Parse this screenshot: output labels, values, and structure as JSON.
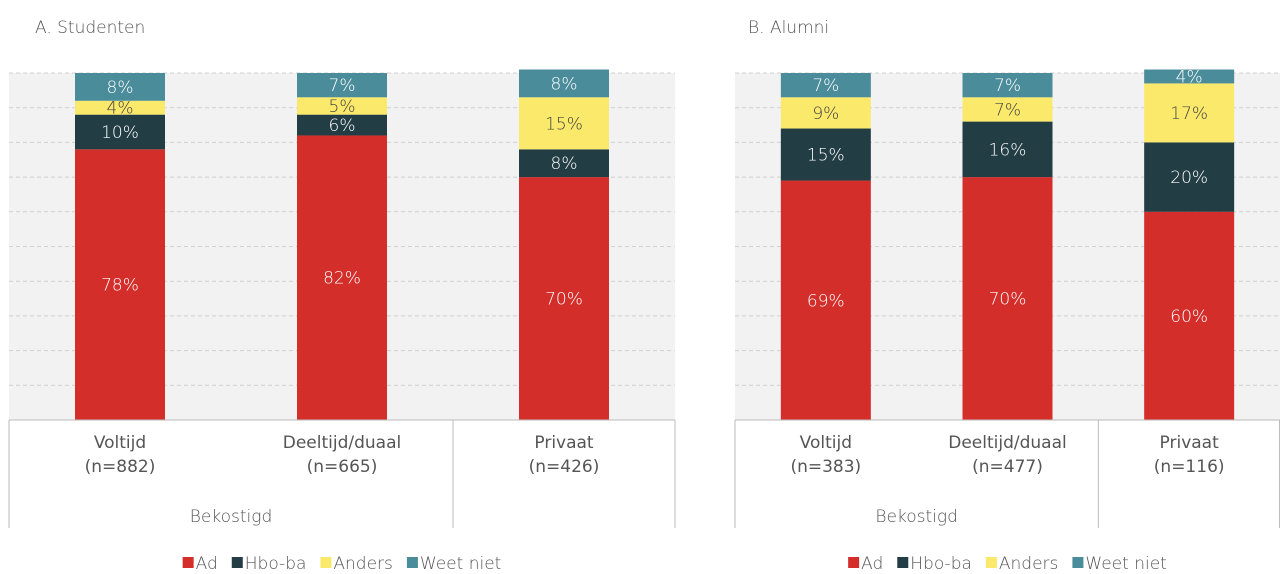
{
  "chart_data": [
    {
      "type": "stacked-bar",
      "title": "A. Studenten",
      "categories": [
        "Voltijd\n(n=882)",
        "Deeltijd/duaal\n(n=665)",
        "Privaat\n(n=426)"
      ],
      "category_groups": [
        "Bekostigd",
        "Bekostigd",
        null
      ],
      "ylim": [
        0,
        100
      ],
      "yticks": [
        0,
        10,
        20,
        30,
        40,
        50,
        60,
        70,
        80,
        90,
        100
      ],
      "grid": true,
      "series": [
        {
          "name": "Ad",
          "color": "#d42e2b",
          "values": [
            78,
            82,
            70
          ],
          "value_labels": [
            "78%",
            "82%",
            "70%"
          ]
        },
        {
          "name": "Hbo-ba",
          "color": "#233d45",
          "values": [
            10,
            6,
            8
          ],
          "value_labels": [
            "10%",
            "6%",
            "8%"
          ]
        },
        {
          "name": "Anders",
          "color": "#fbe96b",
          "values": [
            4,
            5,
            15
          ],
          "value_labels": [
            "4%",
            "5%",
            "15%"
          ]
        },
        {
          "name": "Weet niet",
          "color": "#4a8c9a",
          "values": [
            8,
            7,
            8
          ],
          "value_labels": [
            "8%",
            "7%",
            "8%"
          ]
        }
      ]
    },
    {
      "type": "stacked-bar",
      "title": "B. Alumni",
      "categories": [
        "Voltijd\n(n=383)",
        "Deeltijd/duaal\n(n=477)",
        "Privaat\n(n=116)"
      ],
      "category_groups": [
        "Bekostigd",
        "Bekostigd",
        null
      ],
      "ylim": [
        0,
        100
      ],
      "yticks": [
        0,
        10,
        20,
        30,
        40,
        50,
        60,
        70,
        80,
        90,
        100
      ],
      "grid": true,
      "series": [
        {
          "name": "Ad",
          "color": "#d42e2b",
          "values": [
            69,
            70,
            60
          ],
          "value_labels": [
            "69%",
            "70%",
            "60%"
          ]
        },
        {
          "name": "Hbo-ba",
          "color": "#233d45",
          "values": [
            15,
            16,
            20
          ],
          "value_labels": [
            "15%",
            "16%",
            "20%"
          ]
        },
        {
          "name": "Anders",
          "color": "#fbe96b",
          "values": [
            9,
            7,
            17
          ],
          "value_labels": [
            "9%",
            "7%",
            "17%"
          ]
        },
        {
          "name": "Weet niet",
          "color": "#4a8c9a",
          "values": [
            7,
            7,
            4
          ],
          "value_labels": [
            "7%",
            "7%",
            "4%"
          ]
        }
      ]
    }
  ]
}
